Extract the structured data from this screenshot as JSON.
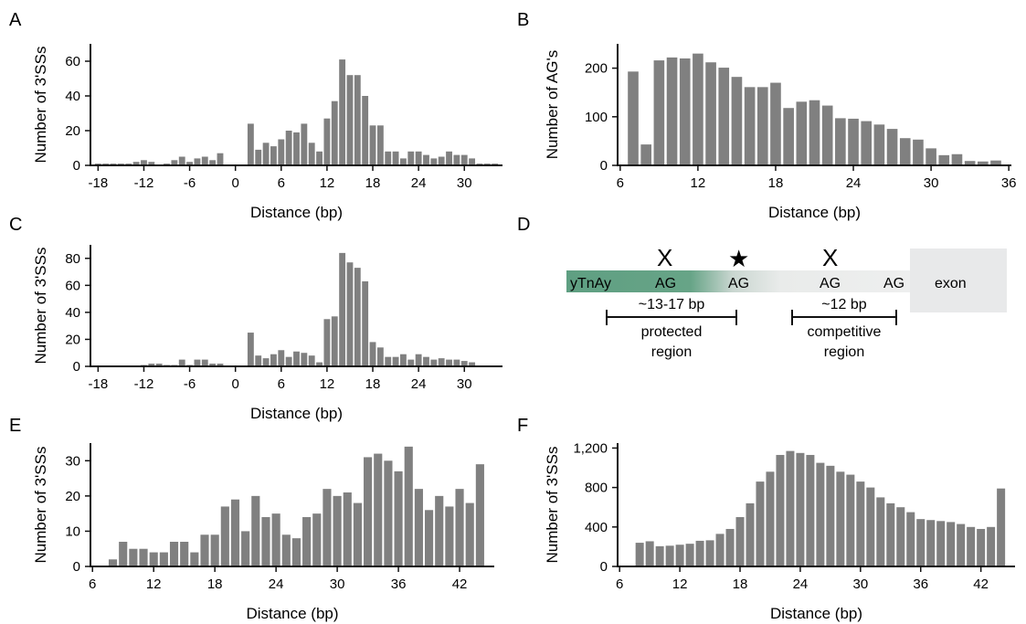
{
  "charts": [
    {
      "panel": "A",
      "type": "bar",
      "xlabel": "Distance (bp)",
      "ylabel": "Number of 3'SSs",
      "xlim": [
        -19,
        35
      ],
      "ylim": [
        0,
        70
      ],
      "xticks": [
        -18,
        -12,
        -6,
        0,
        6,
        12,
        18,
        24,
        30
      ],
      "yticks": [
        0,
        20,
        40,
        60
      ],
      "x": [
        -18,
        -17,
        -16,
        -15,
        -14,
        -13,
        -12,
        -11,
        -10,
        -9,
        -8,
        -7,
        -6,
        -5,
        -4,
        -3,
        -2,
        -1,
        0,
        1,
        2,
        3,
        4,
        5,
        6,
        7,
        8,
        9,
        10,
        11,
        12,
        13,
        14,
        15,
        16,
        17,
        18,
        19,
        20,
        21,
        22,
        23,
        24,
        25,
        26,
        27,
        28,
        29,
        30,
        31,
        32,
        33,
        34
      ],
      "values": [
        1,
        1,
        1,
        1,
        1,
        2,
        3,
        2,
        0,
        1,
        3,
        5,
        2,
        4,
        5,
        3,
        7,
        0,
        0,
        0,
        24,
        9,
        13,
        11,
        15,
        20,
        19,
        24,
        13,
        8,
        27,
        37,
        61,
        52,
        52,
        40,
        23,
        23,
        8,
        8,
        4,
        8,
        8,
        6,
        4,
        5,
        8,
        6,
        6,
        4,
        1,
        1,
        1
      ]
    },
    {
      "panel": "B",
      "type": "bar",
      "xlabel": "Distance (bp)",
      "ylabel": "Number of AG's",
      "xlim": [
        5.8,
        36.2
      ],
      "ylim": [
        0,
        250
      ],
      "xticks": [
        6,
        12,
        18,
        24,
        30,
        36
      ],
      "yticks": [
        0,
        100,
        200
      ],
      "x": [
        7,
        8,
        9,
        10,
        11,
        12,
        13,
        14,
        15,
        16,
        17,
        18,
        19,
        20,
        21,
        22,
        23,
        24,
        25,
        26,
        27,
        28,
        29,
        30,
        31,
        32,
        33,
        34,
        35
      ],
      "values": [
        193,
        43,
        216,
        222,
        220,
        230,
        212,
        201,
        182,
        161,
        161,
        170,
        118,
        131,
        134,
        123,
        97,
        96,
        91,
        84,
        75,
        56,
        53,
        35,
        21,
        23,
        9,
        8,
        10
      ]
    },
    {
      "panel": "C",
      "type": "bar",
      "xlabel": "Distance (bp)",
      "ylabel": "Number of 3'SSs",
      "xlim": [
        -19,
        35
      ],
      "ylim": [
        0,
        90
      ],
      "xticks": [
        -18,
        -12,
        -6,
        0,
        6,
        12,
        18,
        24,
        30
      ],
      "yticks": [
        0,
        20,
        40,
        60,
        80
      ],
      "x": [
        -18,
        -17,
        -16,
        -15,
        -14,
        -13,
        -12,
        -11,
        -10,
        -9,
        -8,
        -7,
        -6,
        -5,
        -4,
        -3,
        -2,
        -1,
        0,
        1,
        2,
        3,
        4,
        5,
        6,
        7,
        8,
        9,
        10,
        11,
        12,
        13,
        14,
        15,
        16,
        17,
        18,
        19,
        20,
        21,
        22,
        23,
        24,
        25,
        26,
        27,
        28,
        29,
        30,
        31,
        32,
        33,
        34
      ],
      "values": [
        0,
        0,
        0,
        0,
        0,
        0,
        1,
        2,
        2,
        1,
        1,
        5,
        1,
        5,
        5,
        2,
        2,
        0,
        0,
        0,
        25,
        8,
        6,
        9,
        12,
        7,
        11,
        10,
        8,
        3,
        35,
        37,
        84,
        77,
        73,
        63,
        18,
        14,
        7,
        7,
        9,
        5,
        9,
        7,
        5,
        6,
        5,
        5,
        4,
        3,
        0,
        0,
        0
      ]
    },
    {
      "panel": "E",
      "type": "bar",
      "xlabel": "Distance (bp)",
      "ylabel": "Number of 3'SSs",
      "xlim": [
        5.8,
        45.4
      ],
      "ylim": [
        0,
        35
      ],
      "xticks": [
        6,
        12,
        18,
        24,
        30,
        36,
        42
      ],
      "yticks": [
        0,
        10,
        20,
        30
      ],
      "x": [
        7,
        8,
        9,
        10,
        11,
        12,
        13,
        14,
        15,
        16,
        17,
        18,
        19,
        20,
        21,
        22,
        23,
        24,
        25,
        26,
        27,
        28,
        29,
        30,
        31,
        32,
        33,
        34,
        35,
        36,
        37,
        38,
        39,
        40,
        41,
        42,
        43,
        44
      ],
      "values": [
        0,
        2,
        7,
        5,
        5,
        4,
        4,
        7,
        7,
        4,
        9,
        9,
        17,
        19,
        10,
        20,
        14,
        15,
        9,
        8,
        14,
        15,
        22,
        20,
        21,
        18,
        31,
        32,
        30,
        27,
        34,
        22,
        16,
        20,
        17,
        22,
        18,
        29
      ]
    },
    {
      "panel": "F",
      "type": "bar",
      "xlabel": "Distance (bp)",
      "ylabel": "Number of 3'SSs",
      "xlim": [
        5.8,
        45.4
      ],
      "ylim": [
        0,
        1250
      ],
      "xticks": [
        6,
        12,
        18,
        24,
        30,
        36,
        42
      ],
      "yticks": [
        0,
        400,
        800,
        1200
      ],
      "ytick_labels": [
        "0",
        "400",
        "800",
        "1,200"
      ],
      "x": [
        8,
        9,
        10,
        11,
        12,
        13,
        14,
        15,
        16,
        17,
        18,
        19,
        20,
        21,
        22,
        23,
        24,
        25,
        26,
        27,
        28,
        29,
        30,
        31,
        32,
        33,
        34,
        35,
        36,
        37,
        38,
        39,
        40,
        41,
        42,
        43,
        44
      ],
      "values": [
        240,
        255,
        205,
        210,
        220,
        230,
        260,
        265,
        330,
        380,
        500,
        640,
        860,
        960,
        1130,
        1170,
        1150,
        1130,
        1050,
        1020,
        960,
        930,
        860,
        800,
        700,
        640,
        600,
        550,
        480,
        470,
        460,
        450,
        430,
        400,
        380,
        400,
        790
      ]
    }
  ],
  "panel_D": {
    "label": "D",
    "seq_left": "yTnAy",
    "ag1": "AG",
    "ag2": "AG",
    "ag3": "AG",
    "ag4": "AG",
    "mark_x1": "X",
    "mark_star": "★",
    "mark_x2": "X",
    "exon": "exon",
    "protected_len": "~13-17 bp",
    "protected_line1": "protected",
    "protected_line2": "region",
    "competitive_len": "~12 bp",
    "competitive_line1": "competitive",
    "competitive_line2": "region",
    "colors": {
      "green": "#5f9f82",
      "grey": "#e8e9ea"
    }
  },
  "bar_color": "#808080"
}
